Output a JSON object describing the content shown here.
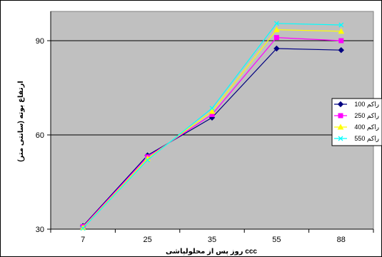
{
  "chart_data": {
    "type": "line",
    "title": "",
    "xlabel": "روز پس از محلولپاشی ccc",
    "ylabel": "ارتفاع بوته (سانتی متر)",
    "categories": [
      "7",
      "25",
      "35",
      "55",
      "88"
    ],
    "y_ticks": [
      "30",
      "60",
      "90"
    ],
    "ylim": [
      30,
      90
    ],
    "grid": "horizontal",
    "plot_background": "#c0c0c0",
    "legend_position": "right",
    "series": [
      {
        "name": "راکم 100",
        "values": [
          31,
          53.5,
          65.5,
          87.5,
          87
        ],
        "color": "#000080",
        "marker": "diamond"
      },
      {
        "name": "راکم 250",
        "values": [
          30.8,
          53,
          66.5,
          91,
          90
        ],
        "color": "#ff00ff",
        "marker": "square"
      },
      {
        "name": "راکم 400",
        "values": [
          30.5,
          52.5,
          67.5,
          93.5,
          93
        ],
        "color": "#ffff00",
        "marker": "triangle"
      },
      {
        "name": "راکم 550",
        "values": [
          30.3,
          52,
          68.5,
          95.5,
          95
        ],
        "color": "#00ffff",
        "marker": "x"
      }
    ]
  }
}
